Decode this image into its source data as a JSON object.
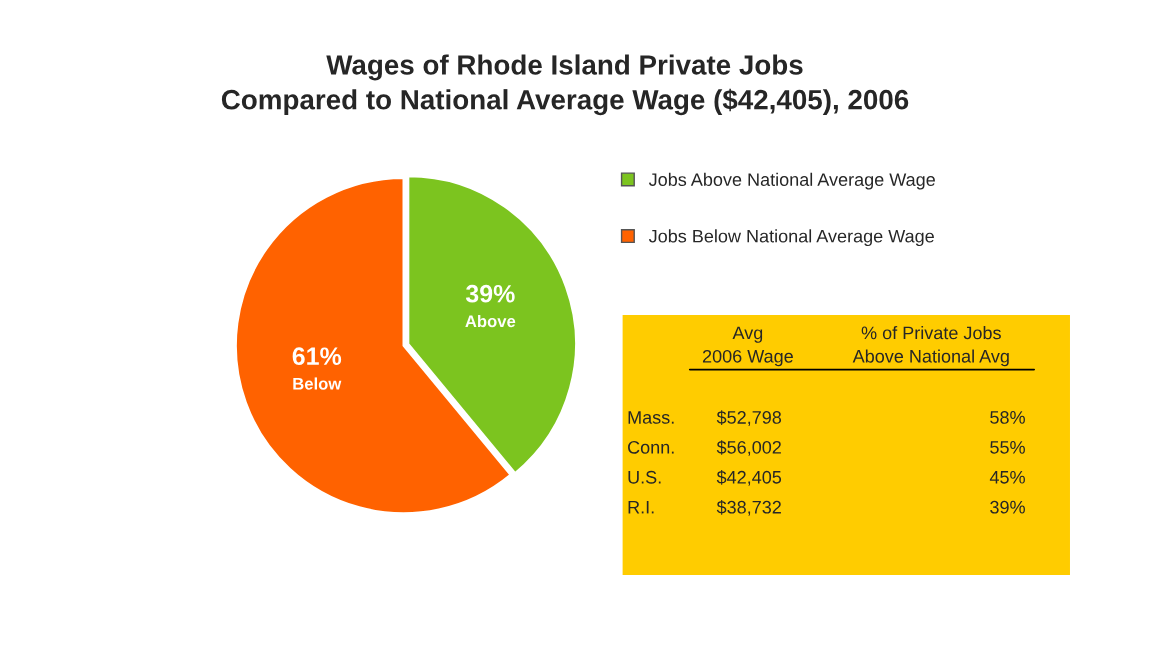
{
  "chart_data": [
    {
      "type": "pie",
      "title": "Wages of Rhode Island Private Jobs\nCompared to National Average Wage ($42,405), 2006",
      "categories": [
        "Jobs Above National Average Wage",
        "Jobs Below National Average Wage"
      ],
      "values": [
        39,
        61
      ],
      "colors": [
        "#7cc41f",
        "#ff6200"
      ],
      "value_labels": [
        "39%\nAbove",
        "61%\nBelow"
      ],
      "legend": "right"
    },
    {
      "type": "other",
      "annotations": [
        "Avg\n2006 Wage",
        "% of Private Jobs\nAbove National Avg",
        "Mass.",
        "$52,798",
        "58%",
        "Conn.",
        "$56,002",
        "55%",
        "U.S.",
        "$42,405",
        "45%",
        "R.I.",
        "$38,732",
        "39%"
      ]
    }
  ]
}
